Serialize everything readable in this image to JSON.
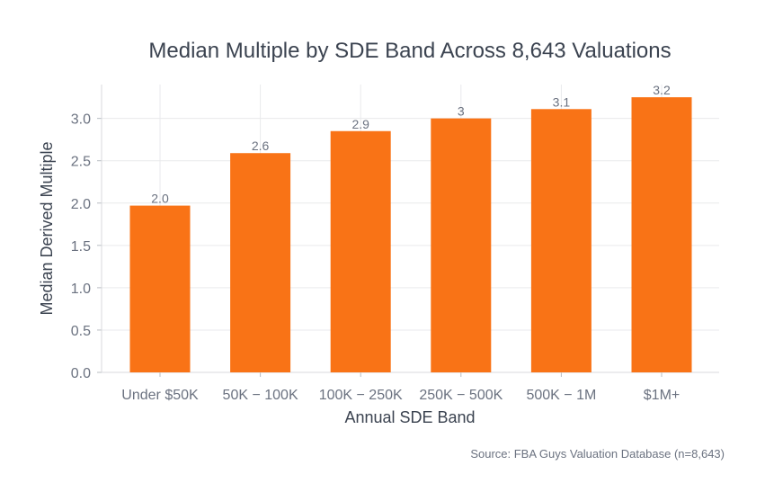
{
  "chart_data": {
    "type": "bar",
    "title": "Median Multiple by SDE Band Across 8,643 Valuations",
    "xlabel": "Annual SDE Band",
    "ylabel": "Median Derived Multiple",
    "categories": [
      "Under $50K",
      "$50K − $100K",
      "$100K − $250K",
      "$250K − $500K",
      "$500K − $1M",
      "$1M+"
    ],
    "category_tick_labels": [
      "Under $50K",
      "50K − 100K",
      "100K − 250K",
      "250K − 500K",
      "500K − 1M",
      "$1M+"
    ],
    "values": [
      1.97,
      2.59,
      2.85,
      3.0,
      3.11,
      3.25
    ],
    "data_labels": [
      "2.0",
      "2.6",
      "2.9",
      "3",
      "3.1",
      "3.2"
    ],
    "ylim": [
      0,
      3.4
    ],
    "yticks": [
      0.0,
      0.5,
      1.0,
      1.5,
      2.0,
      2.5,
      3.0
    ],
    "ytick_labels": [
      "0.0",
      "0.5",
      "1.0",
      "1.5",
      "2.0",
      "2.5",
      "3.0"
    ],
    "grid": true,
    "bar_color": "#f97316",
    "source": "Source: FBA Guys Valuation Database (n=8,643)"
  }
}
